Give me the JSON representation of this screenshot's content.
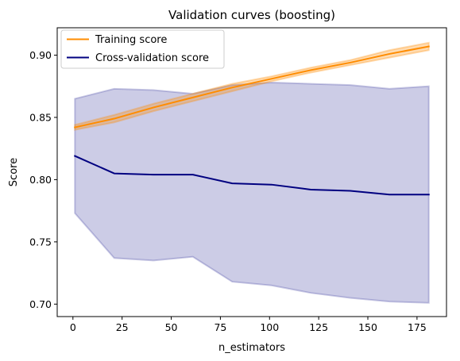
{
  "chart_data": {
    "type": "line",
    "title": "Validation curves (boosting)",
    "xlabel": "n_estimators",
    "ylabel": "Score",
    "xlim": [
      -8,
      190
    ],
    "ylim": [
      0.69,
      0.922
    ],
    "xticks": [
      0,
      25,
      50,
      75,
      100,
      125,
      150,
      175
    ],
    "yticks": [
      0.7,
      0.75,
      0.8,
      0.85,
      0.9
    ],
    "ytick_labels": [
      "0.70",
      "0.75",
      "0.80",
      "0.85",
      "0.90"
    ],
    "grid": false,
    "legend_position": "top-left",
    "x": [
      1,
      21,
      41,
      61,
      81,
      101,
      121,
      141,
      161,
      181
    ],
    "series": [
      {
        "name": "Training score",
        "color": "#ff8c00",
        "values": [
          0.842,
          0.849,
          0.858,
          0.866,
          0.874,
          0.881,
          0.888,
          0.894,
          0.901,
          0.907
        ],
        "band_lower": [
          0.84,
          0.846,
          0.855,
          0.863,
          0.871,
          0.879,
          0.886,
          0.892,
          0.898,
          0.904
        ],
        "band_upper": [
          0.844,
          0.852,
          0.861,
          0.869,
          0.877,
          0.883,
          0.89,
          0.896,
          0.904,
          0.91
        ]
      },
      {
        "name": "Cross-validation score",
        "color": "#000080",
        "values": [
          0.819,
          0.805,
          0.804,
          0.804,
          0.797,
          0.796,
          0.792,
          0.791,
          0.788,
          0.788
        ],
        "band_lower": [
          0.773,
          0.737,
          0.735,
          0.738,
          0.718,
          0.715,
          0.709,
          0.705,
          0.702,
          0.701
        ],
        "band_upper": [
          0.865,
          0.873,
          0.872,
          0.869,
          0.876,
          0.878,
          0.877,
          0.876,
          0.873,
          0.875
        ]
      }
    ]
  }
}
